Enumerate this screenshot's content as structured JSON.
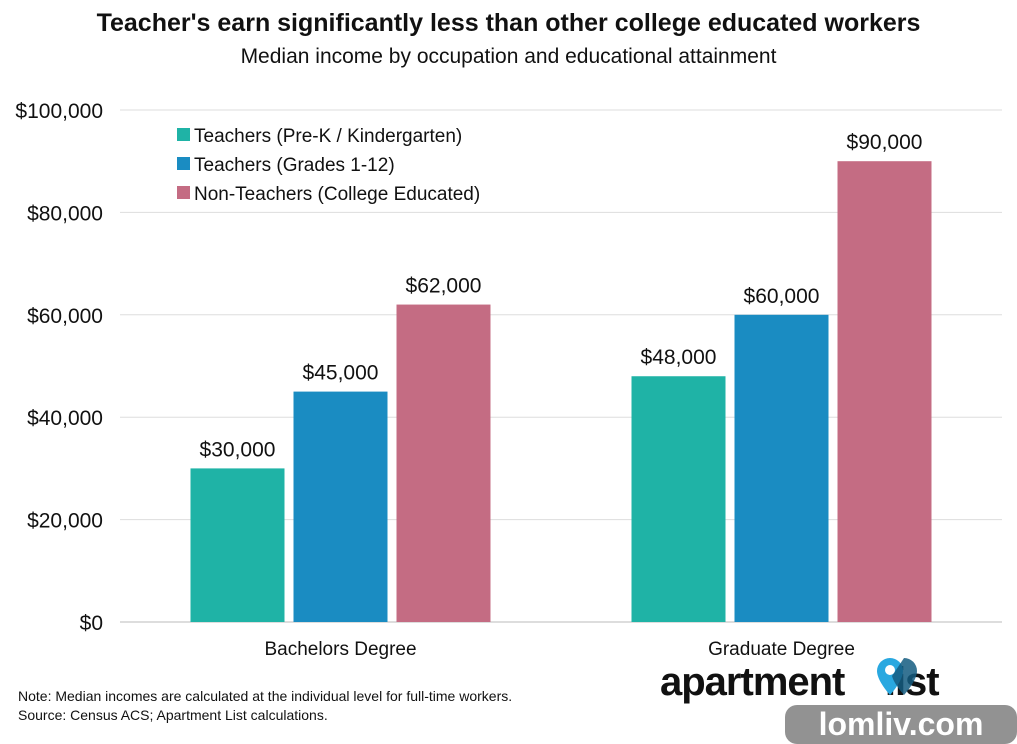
{
  "chart_data": {
    "type": "bar",
    "title": "Teacher's earn significantly less than other college educated workers",
    "subtitle": "Median income by occupation and educational attainment",
    "categories": [
      "Bachelors Degree",
      "Graduate Degree"
    ],
    "series": [
      {
        "name": "Teachers (Pre-K / Kindergarten)",
        "color": "#1fb3a6",
        "values": [
          30000,
          48000
        ],
        "labels": [
          "$30,000",
          "$48,000"
        ]
      },
      {
        "name": "Teachers (Grades 1-12)",
        "color": "#1a8cc2",
        "values": [
          45000,
          60000
        ],
        "labels": [
          "$45,000",
          "$60,000"
        ]
      },
      {
        "name": "Non-Teachers (College Educated)",
        "color": "#c46c83",
        "values": [
          62000,
          90000
        ],
        "labels": [
          "$62,000",
          "$90,000"
        ]
      }
    ],
    "ylim": [
      0,
      100000
    ],
    "yticks": [
      0,
      20000,
      40000,
      60000,
      80000,
      100000
    ],
    "ytick_labels": [
      "$0",
      "$20,000",
      "$40,000",
      "$60,000",
      "$80,000",
      "$100,000"
    ],
    "grid": true,
    "legend_position": "top-left",
    "xlabel": "",
    "ylabel": ""
  },
  "note": {
    "line1": "Note: Median incomes are calculated at the individual level for full-time workers.",
    "line2": "Source: Census ACS; Apartment List calculations."
  },
  "logo": {
    "text": "apartment list",
    "pin_color": "#29a8e0"
  },
  "watermark": {
    "text": "lomliv.com"
  }
}
